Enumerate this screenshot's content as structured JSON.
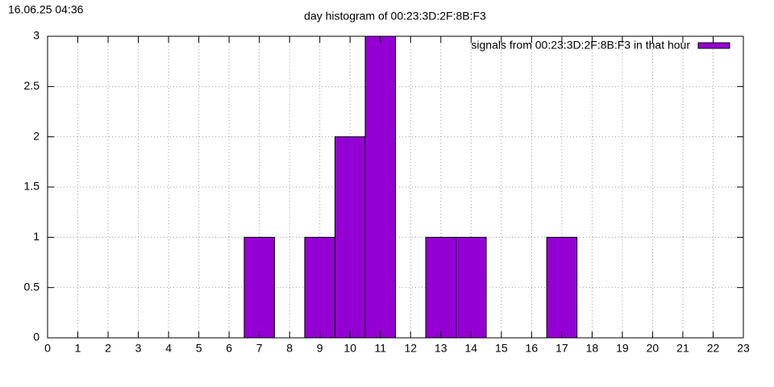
{
  "chart_data": {
    "type": "bar",
    "title": "day histogram of 00:23:3D:2F:8B:F3",
    "timestamp": "16.06.25 04:36",
    "x": [
      0,
      1,
      2,
      3,
      4,
      5,
      6,
      7,
      8,
      9,
      10,
      11,
      12,
      13,
      14,
      15,
      16,
      17,
      18,
      19,
      20,
      21,
      22,
      23
    ],
    "series": [
      {
        "name": "signals from 00:23:3D:2F:8B:F3 in that hour",
        "color": "#9400d3",
        "values": [
          0,
          0,
          0,
          0,
          0,
          0,
          0,
          1,
          0,
          1,
          2,
          3,
          0,
          1,
          1,
          0,
          0,
          1,
          0,
          0,
          0,
          0,
          0,
          0
        ]
      }
    ],
    "xlim": [
      0,
      23
    ],
    "xticks": [
      0,
      1,
      2,
      3,
      4,
      5,
      6,
      7,
      8,
      9,
      10,
      11,
      12,
      13,
      14,
      15,
      16,
      17,
      18,
      19,
      20,
      21,
      22,
      23
    ],
    "ylim": [
      0,
      3
    ],
    "yticks": [
      0,
      0.5,
      1,
      1.5,
      2,
      2.5,
      3
    ],
    "grid": true,
    "legend": "top-right"
  }
}
